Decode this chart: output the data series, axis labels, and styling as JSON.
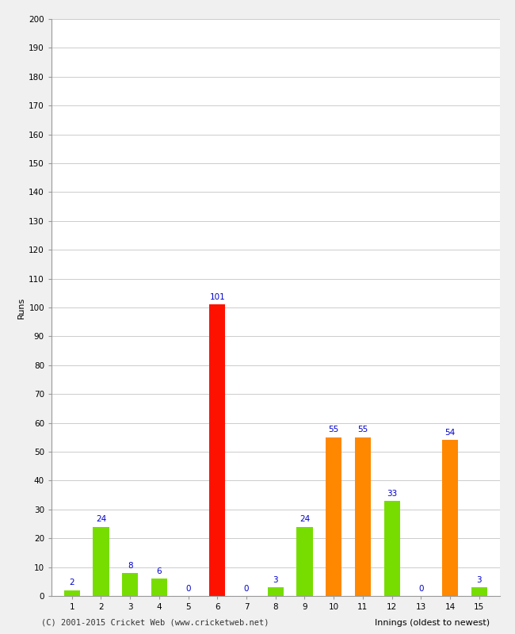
{
  "innings": [
    1,
    2,
    3,
    4,
    5,
    6,
    7,
    8,
    9,
    10,
    11,
    12,
    13,
    14,
    15
  ],
  "values": [
    2,
    24,
    8,
    6,
    0,
    101,
    0,
    3,
    24,
    55,
    55,
    33,
    0,
    54,
    3
  ],
  "colors": [
    "#77dd00",
    "#77dd00",
    "#77dd00",
    "#77dd00",
    "#77dd00",
    "#ff1100",
    "#77dd00",
    "#77dd00",
    "#77dd00",
    "#ff8800",
    "#ff8800",
    "#77dd00",
    "#77dd00",
    "#ff8800",
    "#77dd00"
  ],
  "xlabel": "Innings (oldest to newest)",
  "ylabel": "Runs",
  "ylim": [
    0,
    200
  ],
  "yticks": [
    0,
    10,
    20,
    30,
    40,
    50,
    60,
    70,
    80,
    90,
    100,
    110,
    120,
    130,
    140,
    150,
    160,
    170,
    180,
    190,
    200
  ],
  "footer": "(C) 2001-2015 Cricket Web (www.cricketweb.net)",
  "label_color": "#0000cc",
  "label_fontsize": 7.5,
  "axis_label_fontsize": 8,
  "tick_fontsize": 7.5,
  "background_color": "#f0f0f0",
  "plot_background_color": "#ffffff",
  "grid_color": "#cccccc"
}
